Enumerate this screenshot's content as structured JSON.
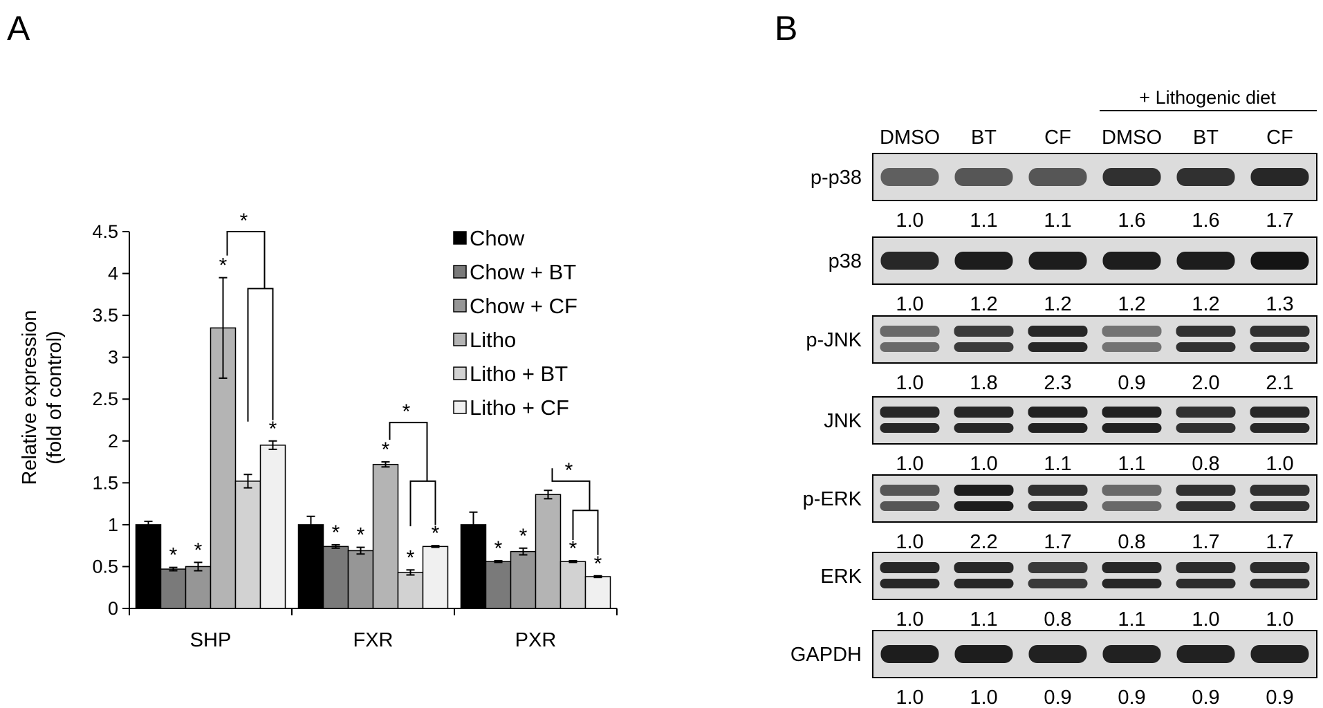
{
  "panels": {
    "a_letter": "A",
    "b_letter": "B"
  },
  "chart_data": {
    "type": "bar",
    "ylabel_line1": "Relative expression",
    "ylabel_line2": "(fold of control)",
    "ylim": [
      0,
      4.5
    ],
    "yticks": [
      "0",
      "0.5",
      "1",
      "1.5",
      "2",
      "2.5",
      "3",
      "3.5",
      "4",
      "4.5"
    ],
    "categories": [
      "SHP",
      "FXR",
      "PXR"
    ],
    "legend_position": "top-right",
    "series": [
      {
        "name": "Chow",
        "color": "#000000",
        "values": [
          1.0,
          1.0,
          1.0
        ],
        "errors": [
          0.04,
          0.1,
          0.15
        ],
        "sig": [
          false,
          false,
          false
        ]
      },
      {
        "name": "Chow + BT",
        "color": "#7a7a7a",
        "values": [
          0.47,
          0.74,
          0.56
        ],
        "errors": [
          0.02,
          0.02,
          0.01
        ],
        "sig": [
          true,
          true,
          true
        ]
      },
      {
        "name": "Chow + CF",
        "color": "#969696",
        "values": [
          0.5,
          0.69,
          0.68
        ],
        "errors": [
          0.05,
          0.04,
          0.04
        ],
        "sig": [
          true,
          true,
          true
        ]
      },
      {
        "name": "Litho",
        "color": "#b4b4b4",
        "values": [
          3.35,
          1.72,
          1.36
        ],
        "errors": [
          0.6,
          0.03,
          0.05
        ],
        "sig": [
          true,
          true,
          false
        ]
      },
      {
        "name": "Litho + BT",
        "color": "#d2d2d2",
        "values": [
          1.52,
          0.43,
          0.56
        ],
        "errors": [
          0.08,
          0.03,
          0.01
        ],
        "sig": [
          false,
          true,
          true
        ]
      },
      {
        "name": "Litho + CF",
        "color": "#f0f0f0",
        "values": [
          1.95,
          0.74,
          0.38
        ],
        "errors": [
          0.05,
          0.01,
          0.01
        ],
        "sig": [
          true,
          true,
          true
        ]
      }
    ],
    "brackets": [
      {
        "category": 0,
        "outer_y": 4.5,
        "inner_y": 3.82,
        "star": "*"
      },
      {
        "category": 1,
        "outer_y": 2.22,
        "inner_y": 1.52,
        "star": "*"
      },
      {
        "category": 2,
        "outer_y": 1.52,
        "inner_y": 1.17,
        "star": "*"
      }
    ],
    "sig_symbol": "*"
  },
  "blot": {
    "group_label": "+ Lithogenic diet",
    "lanes": [
      "DMSO",
      "BT",
      "CF",
      "DMSO",
      "BT",
      "CF"
    ],
    "rows": [
      {
        "label": "p-p38",
        "bands": 1,
        "values": [
          "1.0",
          "1.1",
          "1.1",
          "1.6",
          "1.6",
          "1.7"
        ],
        "intensity": [
          0.55,
          0.6,
          0.6,
          0.8,
          0.8,
          0.85
        ]
      },
      {
        "label": "p38",
        "bands": 1,
        "values": [
          "1.0",
          "1.2",
          "1.2",
          "1.2",
          "1.2",
          "1.3"
        ],
        "intensity": [
          0.85,
          0.9,
          0.9,
          0.9,
          0.9,
          0.95
        ]
      },
      {
        "label": "p-JNK",
        "bands": 2,
        "values": [
          "1.0",
          "1.8",
          "2.3",
          "0.9",
          "2.0",
          "2.1"
        ],
        "intensity": [
          0.5,
          0.75,
          0.85,
          0.45,
          0.8,
          0.8
        ]
      },
      {
        "label": "JNK",
        "bands": 2,
        "values": [
          "1.0",
          "1.0",
          "1.1",
          "1.1",
          "0.8",
          "1.0"
        ],
        "intensity": [
          0.85,
          0.85,
          0.88,
          0.88,
          0.8,
          0.85
        ]
      },
      {
        "label": "p-ERK",
        "bands": 2,
        "values": [
          "1.0",
          "2.2",
          "1.7",
          "0.8",
          "1.7",
          "1.7"
        ],
        "intensity": [
          0.6,
          0.9,
          0.8,
          0.5,
          0.8,
          0.8
        ]
      },
      {
        "label": "ERK",
        "bands": 2,
        "values": [
          "1.0",
          "1.1",
          "0.8",
          "1.1",
          "1.0",
          "1.0"
        ],
        "intensity": [
          0.85,
          0.85,
          0.75,
          0.85,
          0.82,
          0.82
        ]
      },
      {
        "label": "GAPDH",
        "bands": 1,
        "values": [
          "1.0",
          "1.0",
          "0.9",
          "0.9",
          "0.9",
          "0.9"
        ],
        "intensity": [
          0.9,
          0.9,
          0.88,
          0.88,
          0.88,
          0.88
        ]
      }
    ]
  }
}
